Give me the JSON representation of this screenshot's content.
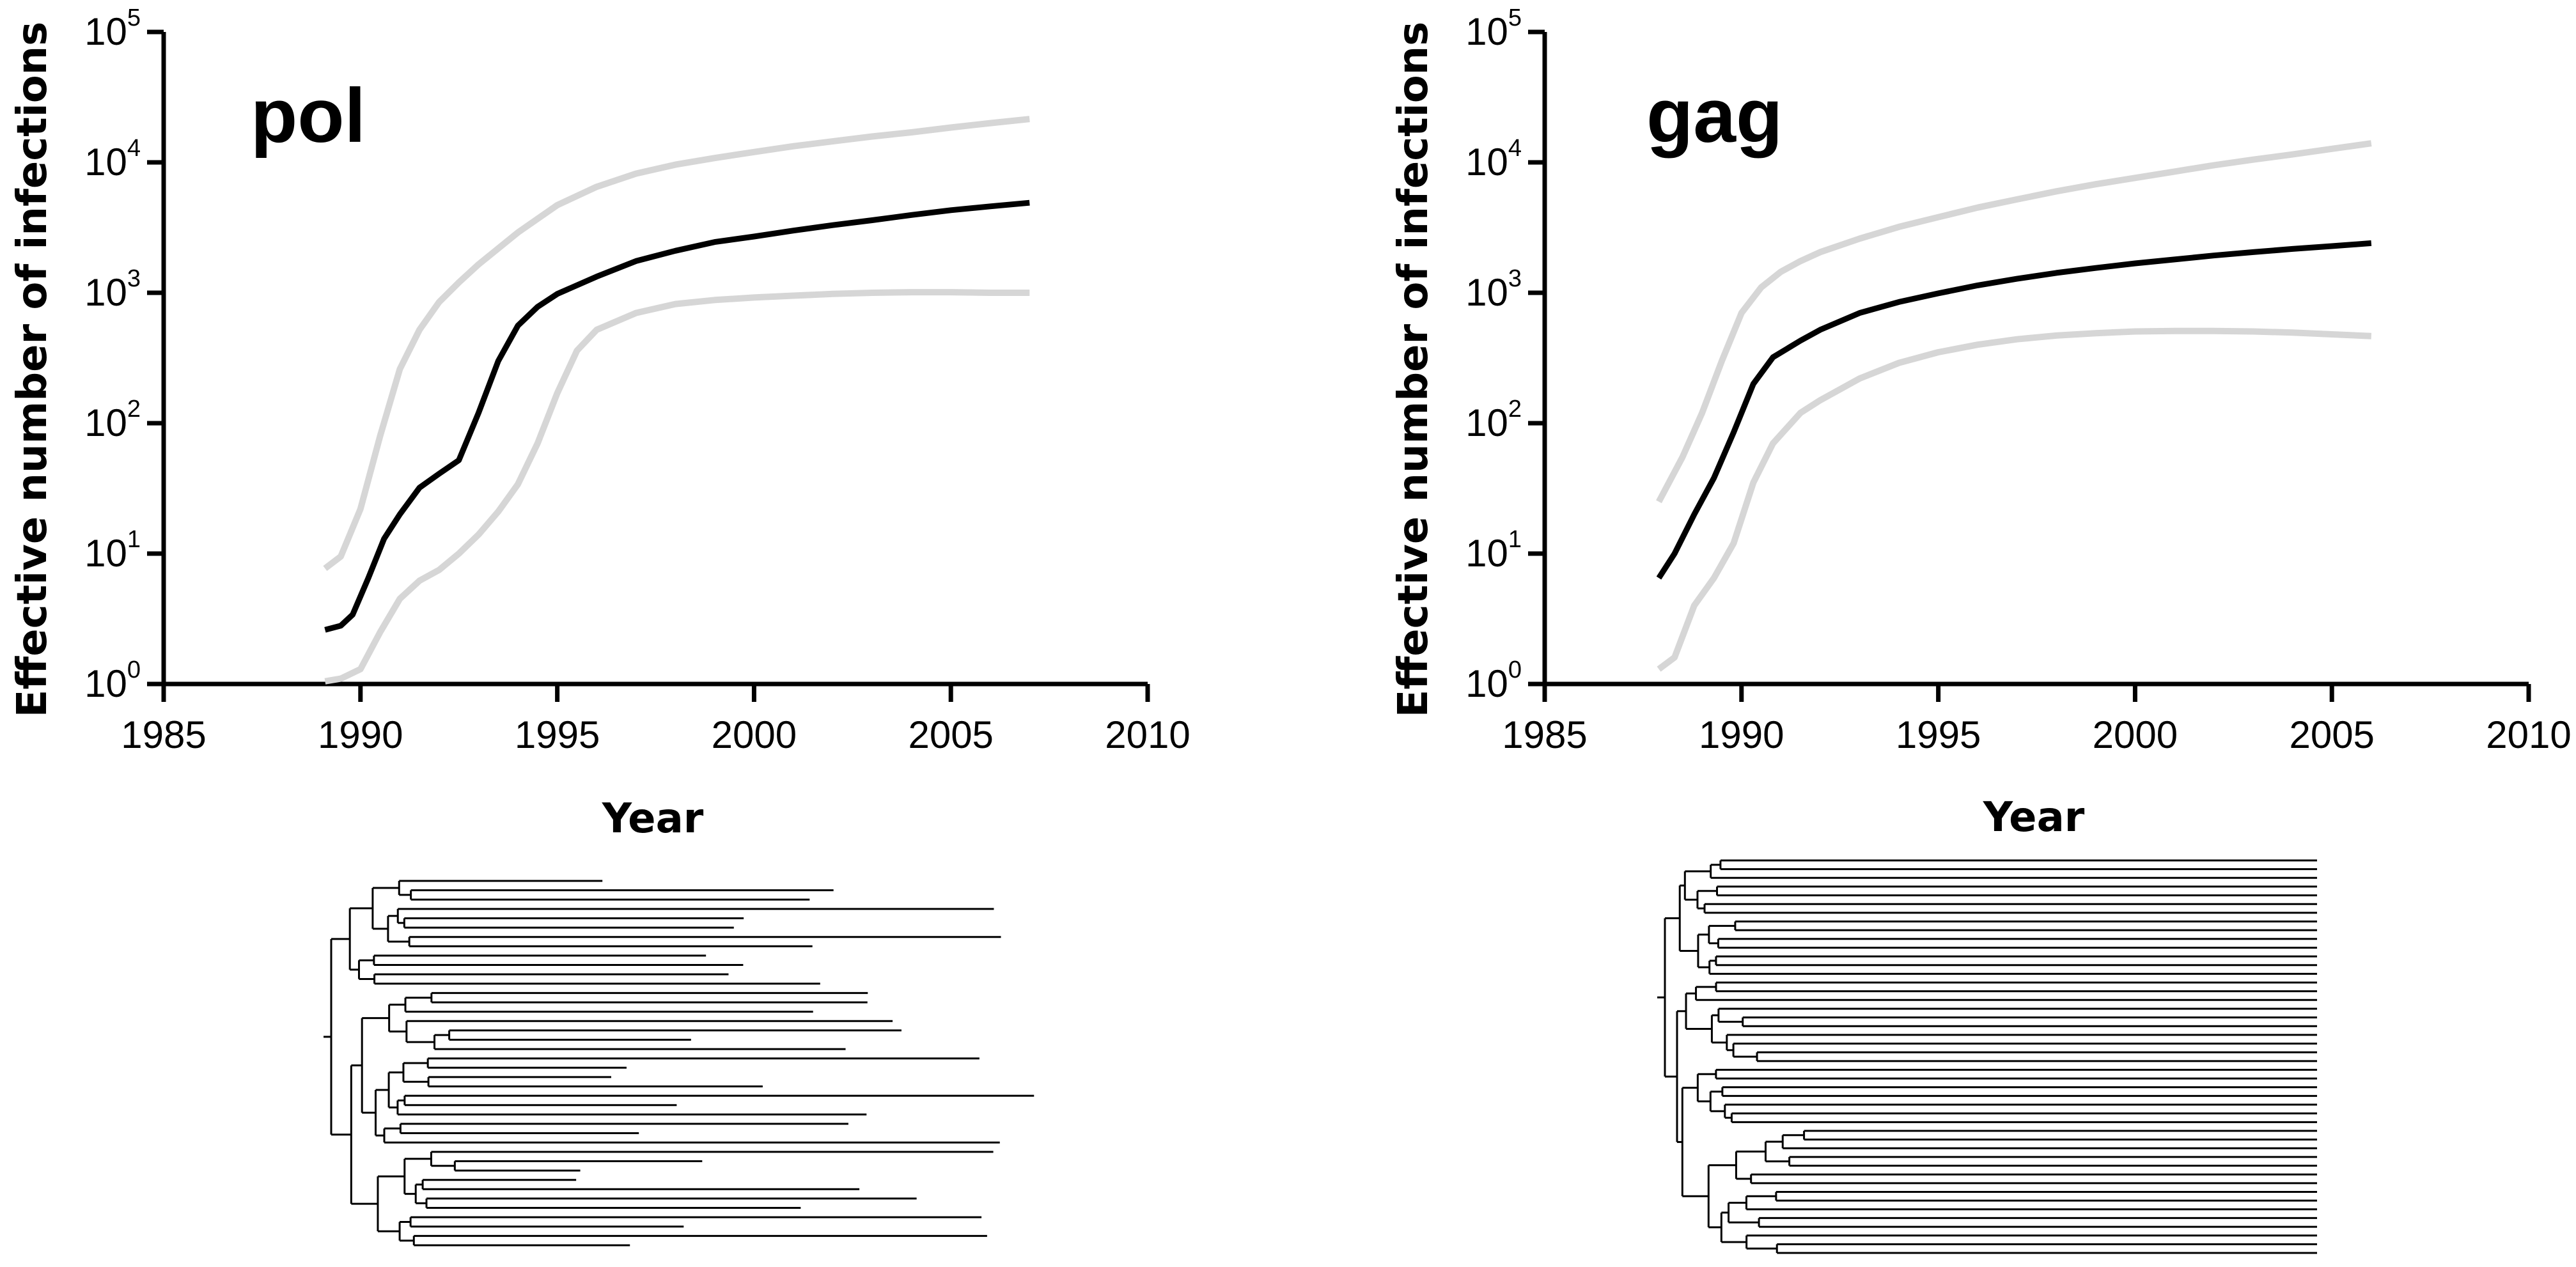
{
  "chart_data": [
    {
      "type": "line",
      "panel_label": "pol",
      "xlabel": "Year",
      "ylabel": "Effective number of infections",
      "xlim": [
        1985,
        2010
      ],
      "xticks": [
        "1985",
        "1990",
        "1995",
        "2000",
        "2005",
        "2010"
      ],
      "y_scale": "log",
      "ylim": [
        1,
        100000
      ],
      "yticks": [
        {
          "base": "10",
          "exp": "0"
        },
        {
          "base": "10",
          "exp": "1"
        },
        {
          "base": "10",
          "exp": "2"
        },
        {
          "base": "10",
          "exp": "3"
        },
        {
          "base": "10",
          "exp": "4"
        },
        {
          "base": "10",
          "exp": "5"
        }
      ],
      "grid": false,
      "colors": {
        "median": "#000000",
        "interval": "#d6d6d6"
      },
      "series": [
        {
          "role": "upper",
          "points": [
            [
              1989.1,
              7.7
            ],
            [
              1989.5,
              9.5
            ],
            [
              1990.0,
              22
            ],
            [
              1990.5,
              80
            ],
            [
              1991.0,
              260
            ],
            [
              1991.5,
              520
            ],
            [
              1992.0,
              850
            ],
            [
              1992.5,
              1200
            ],
            [
              1993.0,
              1650
            ],
            [
              1994.0,
              2900
            ],
            [
              1995.0,
              4700
            ],
            [
              1996.0,
              6500
            ],
            [
              1997.0,
              8200
            ],
            [
              1998.0,
              9600
            ],
            [
              1999.0,
              10800
            ],
            [
              2000.0,
              12000
            ],
            [
              2001.0,
              13300
            ],
            [
              2002.0,
              14500
            ],
            [
              2003.0,
              15800
            ],
            [
              2004.0,
              17000
            ],
            [
              2005.0,
              18500
            ],
            [
              2006.0,
              20000
            ],
            [
              2007.0,
              21500
            ]
          ]
        },
        {
          "role": "median",
          "points": [
            [
              1989.1,
              2.6
            ],
            [
              1989.5,
              2.8
            ],
            [
              1989.8,
              3.4
            ],
            [
              1990.2,
              6.5
            ],
            [
              1990.6,
              13
            ],
            [
              1991.0,
              20
            ],
            [
              1991.5,
              32
            ],
            [
              1992.0,
              41
            ],
            [
              1992.5,
              52
            ],
            [
              1993.0,
              120
            ],
            [
              1993.5,
              300
            ],
            [
              1994.0,
              560
            ],
            [
              1994.5,
              780
            ],
            [
              1995.0,
              980
            ],
            [
              1996.0,
              1330
            ],
            [
              1997.0,
              1750
            ],
            [
              1998.0,
              2100
            ],
            [
              1999.0,
              2450
            ],
            [
              2000.0,
              2700
            ],
            [
              2001.0,
              3000
            ],
            [
              2002.0,
              3300
            ],
            [
              2003.0,
              3600
            ],
            [
              2004.0,
              3950
            ],
            [
              2005.0,
              4300
            ],
            [
              2006.0,
              4600
            ],
            [
              2007.0,
              4900
            ]
          ]
        },
        {
          "role": "lower",
          "points": [
            [
              1989.1,
              1.05
            ],
            [
              1989.5,
              1.1
            ],
            [
              1990.0,
              1.3
            ],
            [
              1990.5,
              2.5
            ],
            [
              1991.0,
              4.5
            ],
            [
              1991.5,
              6.2
            ],
            [
              1992.0,
              7.5
            ],
            [
              1992.5,
              10
            ],
            [
              1993.0,
              14
            ],
            [
              1993.5,
              21
            ],
            [
              1994.0,
              34
            ],
            [
              1994.5,
              70
            ],
            [
              1995.0,
              170
            ],
            [
              1995.5,
              360
            ],
            [
              1996.0,
              520
            ],
            [
              1997.0,
              700
            ],
            [
              1998.0,
              820
            ],
            [
              1999.0,
              880
            ],
            [
              2000.0,
              920
            ],
            [
              2001.0,
              950
            ],
            [
              2002.0,
              980
            ],
            [
              2003.0,
              1000
            ],
            [
              2004.0,
              1010
            ],
            [
              2005.0,
              1010
            ],
            [
              2006.0,
              1000
            ],
            [
              2007.0,
              1000
            ]
          ]
        }
      ]
    },
    {
      "type": "line",
      "panel_label": "gag",
      "xlabel": "Year",
      "ylabel": "Effective number of infections",
      "xlim": [
        1985,
        2010
      ],
      "xticks": [
        "1985",
        "1990",
        "1995",
        "2000",
        "2005",
        "2010"
      ],
      "y_scale": "log",
      "ylim": [
        1,
        100000
      ],
      "yticks": [
        {
          "base": "10",
          "exp": "0"
        },
        {
          "base": "10",
          "exp": "1"
        },
        {
          "base": "10",
          "exp": "2"
        },
        {
          "base": "10",
          "exp": "3"
        },
        {
          "base": "10",
          "exp": "4"
        },
        {
          "base": "10",
          "exp": "5"
        }
      ],
      "grid": false,
      "colors": {
        "median": "#000000",
        "interval": "#d6d6d6"
      },
      "series": [
        {
          "role": "upper",
          "points": [
            [
              1987.9,
              25
            ],
            [
              1988.5,
              55
            ],
            [
              1989.0,
              120
            ],
            [
              1989.5,
              300
            ],
            [
              1990.0,
              700
            ],
            [
              1990.5,
              1100
            ],
            [
              1991.0,
              1450
            ],
            [
              1991.5,
              1750
            ],
            [
              1992.0,
              2050
            ],
            [
              1993.0,
              2600
            ],
            [
              1994.0,
              3200
            ],
            [
              1995.0,
              3800
            ],
            [
              1996.0,
              4500
            ],
            [
              1997.0,
              5200
            ],
            [
              1998.0,
              6000
            ],
            [
              1999.0,
              6800
            ],
            [
              2000.0,
              7600
            ],
            [
              2001.0,
              8500
            ],
            [
              2002.0,
              9500
            ],
            [
              2003.0,
              10500
            ],
            [
              2004.0,
              11500
            ],
            [
              2005.0,
              12700
            ],
            [
              2006.0,
              14000
            ]
          ]
        },
        {
          "role": "median",
          "points": [
            [
              1987.9,
              6.5
            ],
            [
              1988.3,
              10
            ],
            [
              1988.8,
              20
            ],
            [
              1989.3,
              38
            ],
            [
              1989.8,
              85
            ],
            [
              1990.3,
              200
            ],
            [
              1990.8,
              320
            ],
            [
              1991.5,
              430
            ],
            [
              1992.0,
              520
            ],
            [
              1993.0,
              700
            ],
            [
              1994.0,
              850
            ],
            [
              1995.0,
              990
            ],
            [
              1996.0,
              1140
            ],
            [
              1997.0,
              1280
            ],
            [
              1998.0,
              1420
            ],
            [
              1999.0,
              1550
            ],
            [
              2000.0,
              1680
            ],
            [
              2001.0,
              1800
            ],
            [
              2002.0,
              1930
            ],
            [
              2003.0,
              2050
            ],
            [
              2004.0,
              2170
            ],
            [
              2005.0,
              2280
            ],
            [
              2006.0,
              2400
            ]
          ]
        },
        {
          "role": "lower",
          "points": [
            [
              1987.9,
              1.3
            ],
            [
              1988.3,
              1.6
            ],
            [
              1988.8,
              4
            ],
            [
              1989.3,
              6.5
            ],
            [
              1989.8,
              12
            ],
            [
              1990.3,
              35
            ],
            [
              1990.8,
              70
            ],
            [
              1991.5,
              120
            ],
            [
              1992.0,
              150
            ],
            [
              1993.0,
              220
            ],
            [
              1994.0,
              290
            ],
            [
              1995.0,
              350
            ],
            [
              1996.0,
              400
            ],
            [
              1997.0,
              440
            ],
            [
              1998.0,
              470
            ],
            [
              1999.0,
              490
            ],
            [
              2000.0,
              505
            ],
            [
              2001.0,
              510
            ],
            [
              2002.0,
              510
            ],
            [
              2003.0,
              505
            ],
            [
              2004.0,
              495
            ],
            [
              2005.0,
              480
            ],
            [
              2006.0,
              465
            ]
          ]
        }
      ]
    }
  ]
}
